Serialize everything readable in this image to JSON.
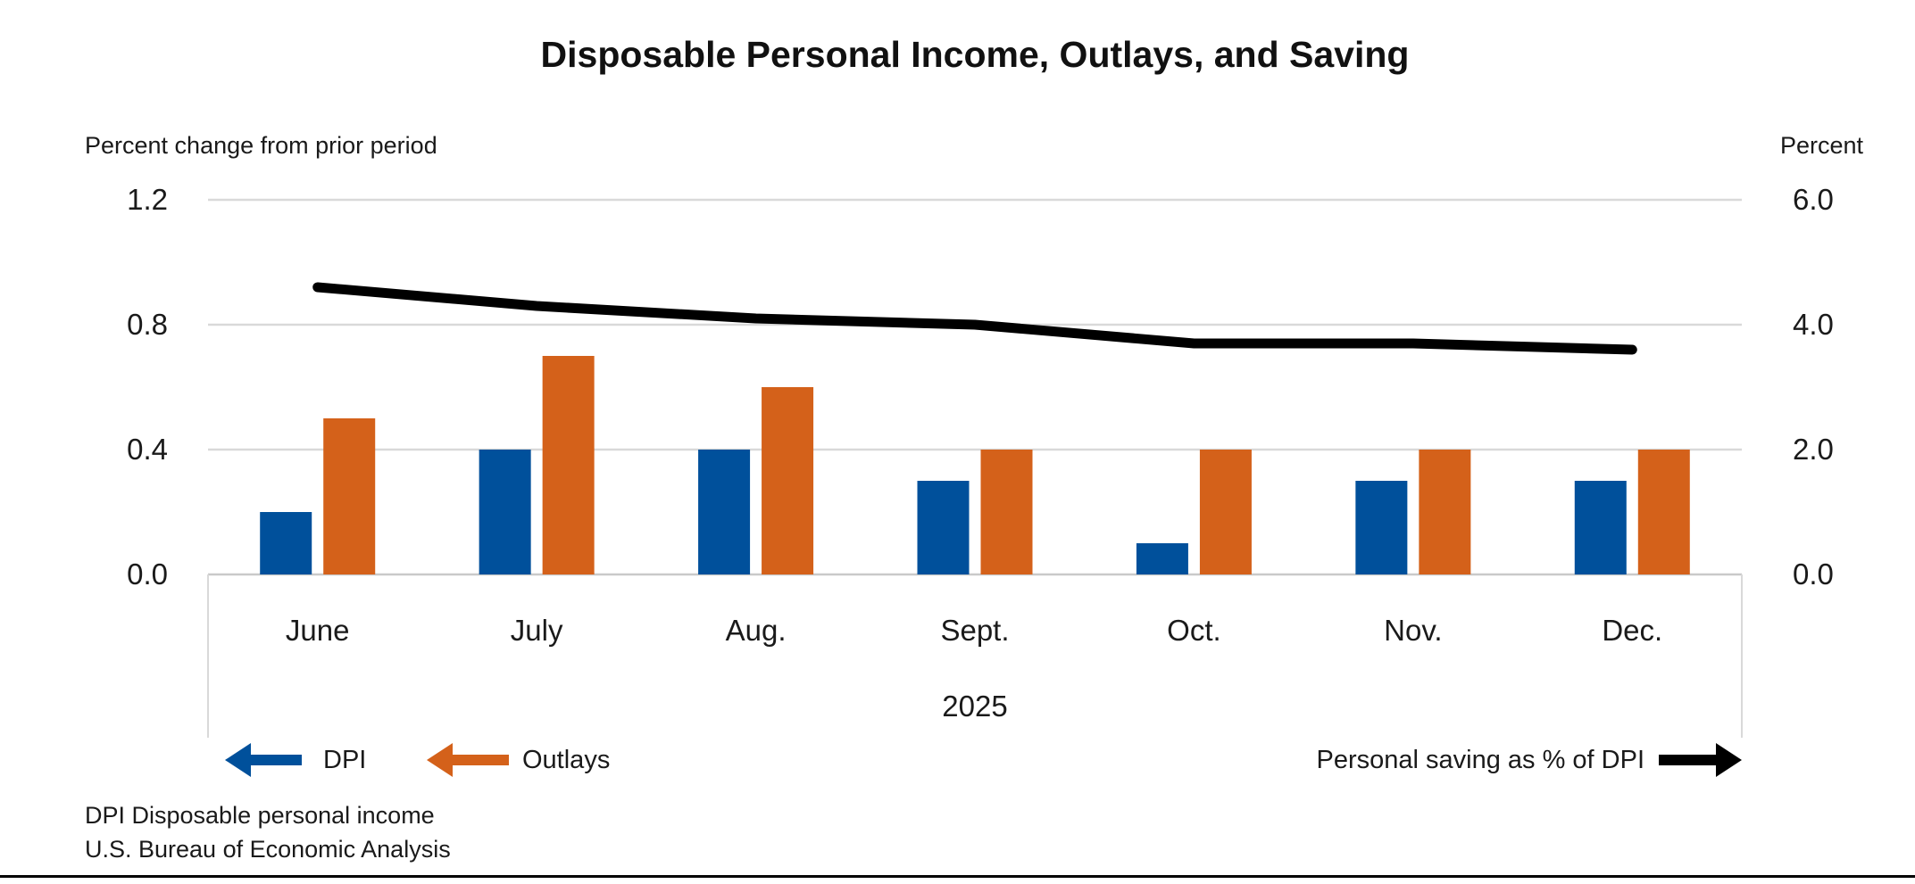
{
  "title": "Disposable Personal Income, Outlays, and Saving",
  "left_axis": {
    "title": "Percent change from prior period",
    "ticks": [
      "1.2",
      "0.8",
      "0.4",
      "0.0"
    ]
  },
  "right_axis": {
    "title": "Percent",
    "ticks": [
      "6.0",
      "4.0",
      "2.0",
      "0.0"
    ]
  },
  "x_axis": {
    "year_label": "2025"
  },
  "legend": {
    "dpi_label": "DPI",
    "outlays_label": "Outlays",
    "saving_label": "Personal saving as % of DPI"
  },
  "footnotes": [
    "DPI Disposable personal income",
    "U.S. Bureau of Economic Analysis"
  ],
  "colors": {
    "dpi_bar": "#00509B",
    "outlays_bar": "#D4611A",
    "saving_line": "#000000",
    "gridline": "#D9D9D9",
    "baseline": "#C9C9C9",
    "axis_band": "#D9D9D9",
    "text": "#1a1a1a"
  },
  "chart_data": {
    "type": "bar+line combo",
    "categories": [
      "June",
      "July",
      "Aug.",
      "Sept.",
      "Oct.",
      "Nov.",
      "Dec."
    ],
    "year": "2025",
    "series": [
      {
        "name": "DPI",
        "type": "bar",
        "axis": "left",
        "values": [
          0.2,
          0.4,
          0.4,
          0.3,
          0.1,
          0.3,
          0.3
        ]
      },
      {
        "name": "Outlays",
        "type": "bar",
        "axis": "left",
        "values": [
          0.5,
          0.7,
          0.6,
          0.4,
          0.4,
          0.4,
          0.4
        ]
      },
      {
        "name": "Personal saving as % of DPI",
        "type": "line",
        "axis": "right",
        "values": [
          4.6,
          4.3,
          4.1,
          4.0,
          3.7,
          3.7,
          3.6
        ]
      }
    ],
    "left_ylim": [
      0,
      1.2
    ],
    "right_ylim": [
      0,
      6.0
    ],
    "left_tick_step": 0.4,
    "right_tick_step": 2.0,
    "grid": "horizontal only",
    "legend_position": "bottom"
  }
}
